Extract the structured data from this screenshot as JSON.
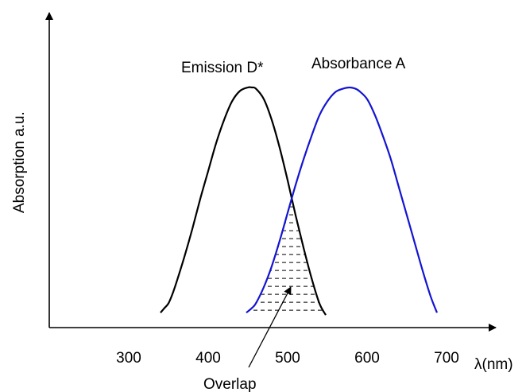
{
  "chart_data": {
    "type": "line",
    "title": "",
    "xlabel": "λ(nm)",
    "ylabel": "Absorption a.u.",
    "xlim": [
      200,
      750
    ],
    "ylim": [
      0,
      1.0
    ],
    "x_ticks": [
      300,
      400,
      500,
      600,
      700
    ],
    "y_ticks": [],
    "grid": false,
    "series": [
      {
        "name": "Emission D*",
        "color": "#000000",
        "x": [
          340,
          345,
          350,
          355,
          360,
          370,
          380,
          390,
          400,
          410,
          420,
          430,
          440,
          450,
          455,
          460,
          470,
          480,
          490,
          500,
          510,
          520,
          530,
          540,
          548
        ],
        "y": [
          0.03,
          0.05,
          0.07,
          0.11,
          0.16,
          0.27,
          0.39,
          0.52,
          0.64,
          0.76,
          0.86,
          0.94,
          0.985,
          1.0,
          1.0,
          0.995,
          0.95,
          0.86,
          0.74,
          0.6,
          0.45,
          0.31,
          0.18,
          0.07,
          0.02
        ]
      },
      {
        "name": "Absorbance A",
        "color": "#1414d2",
        "x": [
          448,
          455,
          460,
          470,
          480,
          490,
          500,
          510,
          520,
          530,
          540,
          550,
          560,
          570,
          578,
          585,
          590,
          600,
          610,
          620,
          630,
          640,
          650,
          660,
          670,
          680,
          688
        ],
        "y": [
          0.03,
          0.05,
          0.07,
          0.14,
          0.23,
          0.34,
          0.46,
          0.58,
          0.69,
          0.79,
          0.88,
          0.94,
          0.98,
          0.995,
          1.0,
          0.995,
          0.985,
          0.95,
          0.88,
          0.79,
          0.69,
          0.57,
          0.45,
          0.33,
          0.21,
          0.1,
          0.03
        ]
      }
    ],
    "annotations": [
      {
        "text": "Overlap",
        "x": 500,
        "y": 0.1
      }
    ],
    "shaded_region": {
      "x_start": 448,
      "x_end": 548,
      "style": "dashed-hatch",
      "label": "Overlap"
    }
  }
}
